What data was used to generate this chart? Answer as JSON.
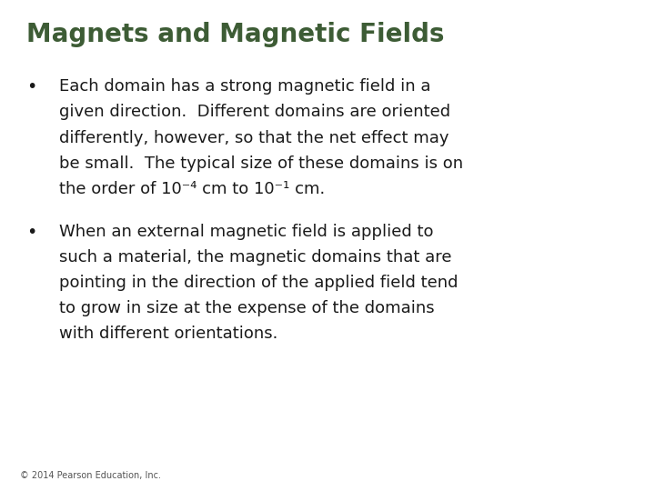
{
  "title": "Magnets and Magnetic Fields",
  "title_color": "#3d5c35",
  "title_fontsize": 20,
  "title_bold": true,
  "background_color": "#ffffff",
  "bullet1_lines": [
    "Each domain has a strong magnetic field in a",
    "given direction.  Different domains are oriented",
    "differently, however, so that the net effect may",
    "be small.  The typical size of these domains is on",
    "the order of 10⁻⁴ cm to 10⁻¹ cm."
  ],
  "bullet2_lines": [
    "When an external magnetic field is applied to",
    "such a material, the magnetic domains that are",
    "pointing in the direction of the applied field tend",
    "to grow in size at the expense of the domains",
    "with different orientations."
  ],
  "body_fontsize": 13,
  "body_color": "#1a1a1a",
  "footer_text": "© 2014 Pearson Education, Inc.",
  "footer_fontsize": 7,
  "footer_color": "#555555"
}
